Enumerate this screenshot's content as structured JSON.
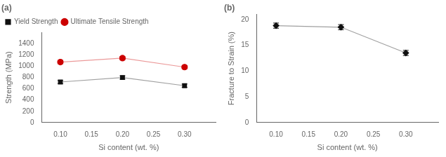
{
  "chart_data": [
    {
      "type": "line",
      "title": "(a)",
      "xlabel": "Si content (wt. %)",
      "ylabel": "Strength (MPa)",
      "x": [
        0.1,
        0.2,
        0.3
      ],
      "series": [
        {
          "name": "Yield Strength",
          "color": "#111111",
          "marker": "square",
          "values": [
            720,
            800,
            655
          ],
          "errors": [
            30,
            30,
            30
          ]
        },
        {
          "name": "Ultimate Tensile Strength",
          "color": "#cc0000",
          "marker": "circle",
          "values": [
            1075,
            1145,
            985
          ],
          "errors": [
            30,
            30,
            30
          ]
        }
      ],
      "xlim": [
        0.07,
        0.35
      ],
      "xticks": [
        {
          "value": 0.1,
          "label": "0.10"
        },
        {
          "value": 0.15,
          "label": "0.15"
        },
        {
          "value": 0.2,
          "label": "0.20"
        },
        {
          "value": 0.25,
          "label": "0.25"
        },
        {
          "value": 0.3,
          "label": "0.30"
        }
      ],
      "ylim": [
        0,
        1600
      ],
      "yticks": [
        0,
        200,
        400,
        600,
        800,
        1000,
        1200,
        1400
      ],
      "grid": false,
      "legend": "upper left"
    },
    {
      "type": "line",
      "title": "(b)",
      "xlabel": "Si content (wt. %)",
      "ylabel": "Fracture to Strain (%)",
      "x": [
        0.1,
        0.2,
        0.3
      ],
      "series": [
        {
          "color": "#111111",
          "marker": "diamond",
          "values": [
            18.8,
            18.5,
            13.5
          ],
          "errors": [
            0.5,
            0.5,
            0.5
          ]
        }
      ],
      "xlim": [
        0.07,
        0.35
      ],
      "xticks": [
        {
          "value": 0.1,
          "label": "0.10"
        },
        {
          "value": 0.15,
          "label": "0.15"
        },
        {
          "value": 0.2,
          "label": "0.20"
        },
        {
          "value": 0.25,
          "label": "0.25"
        },
        {
          "value": 0.3,
          "label": "0.30"
        }
      ],
      "ylim": [
        0,
        21
      ],
      "yticks": [
        0,
        5,
        10,
        15,
        20
      ],
      "grid": false
    }
  ]
}
